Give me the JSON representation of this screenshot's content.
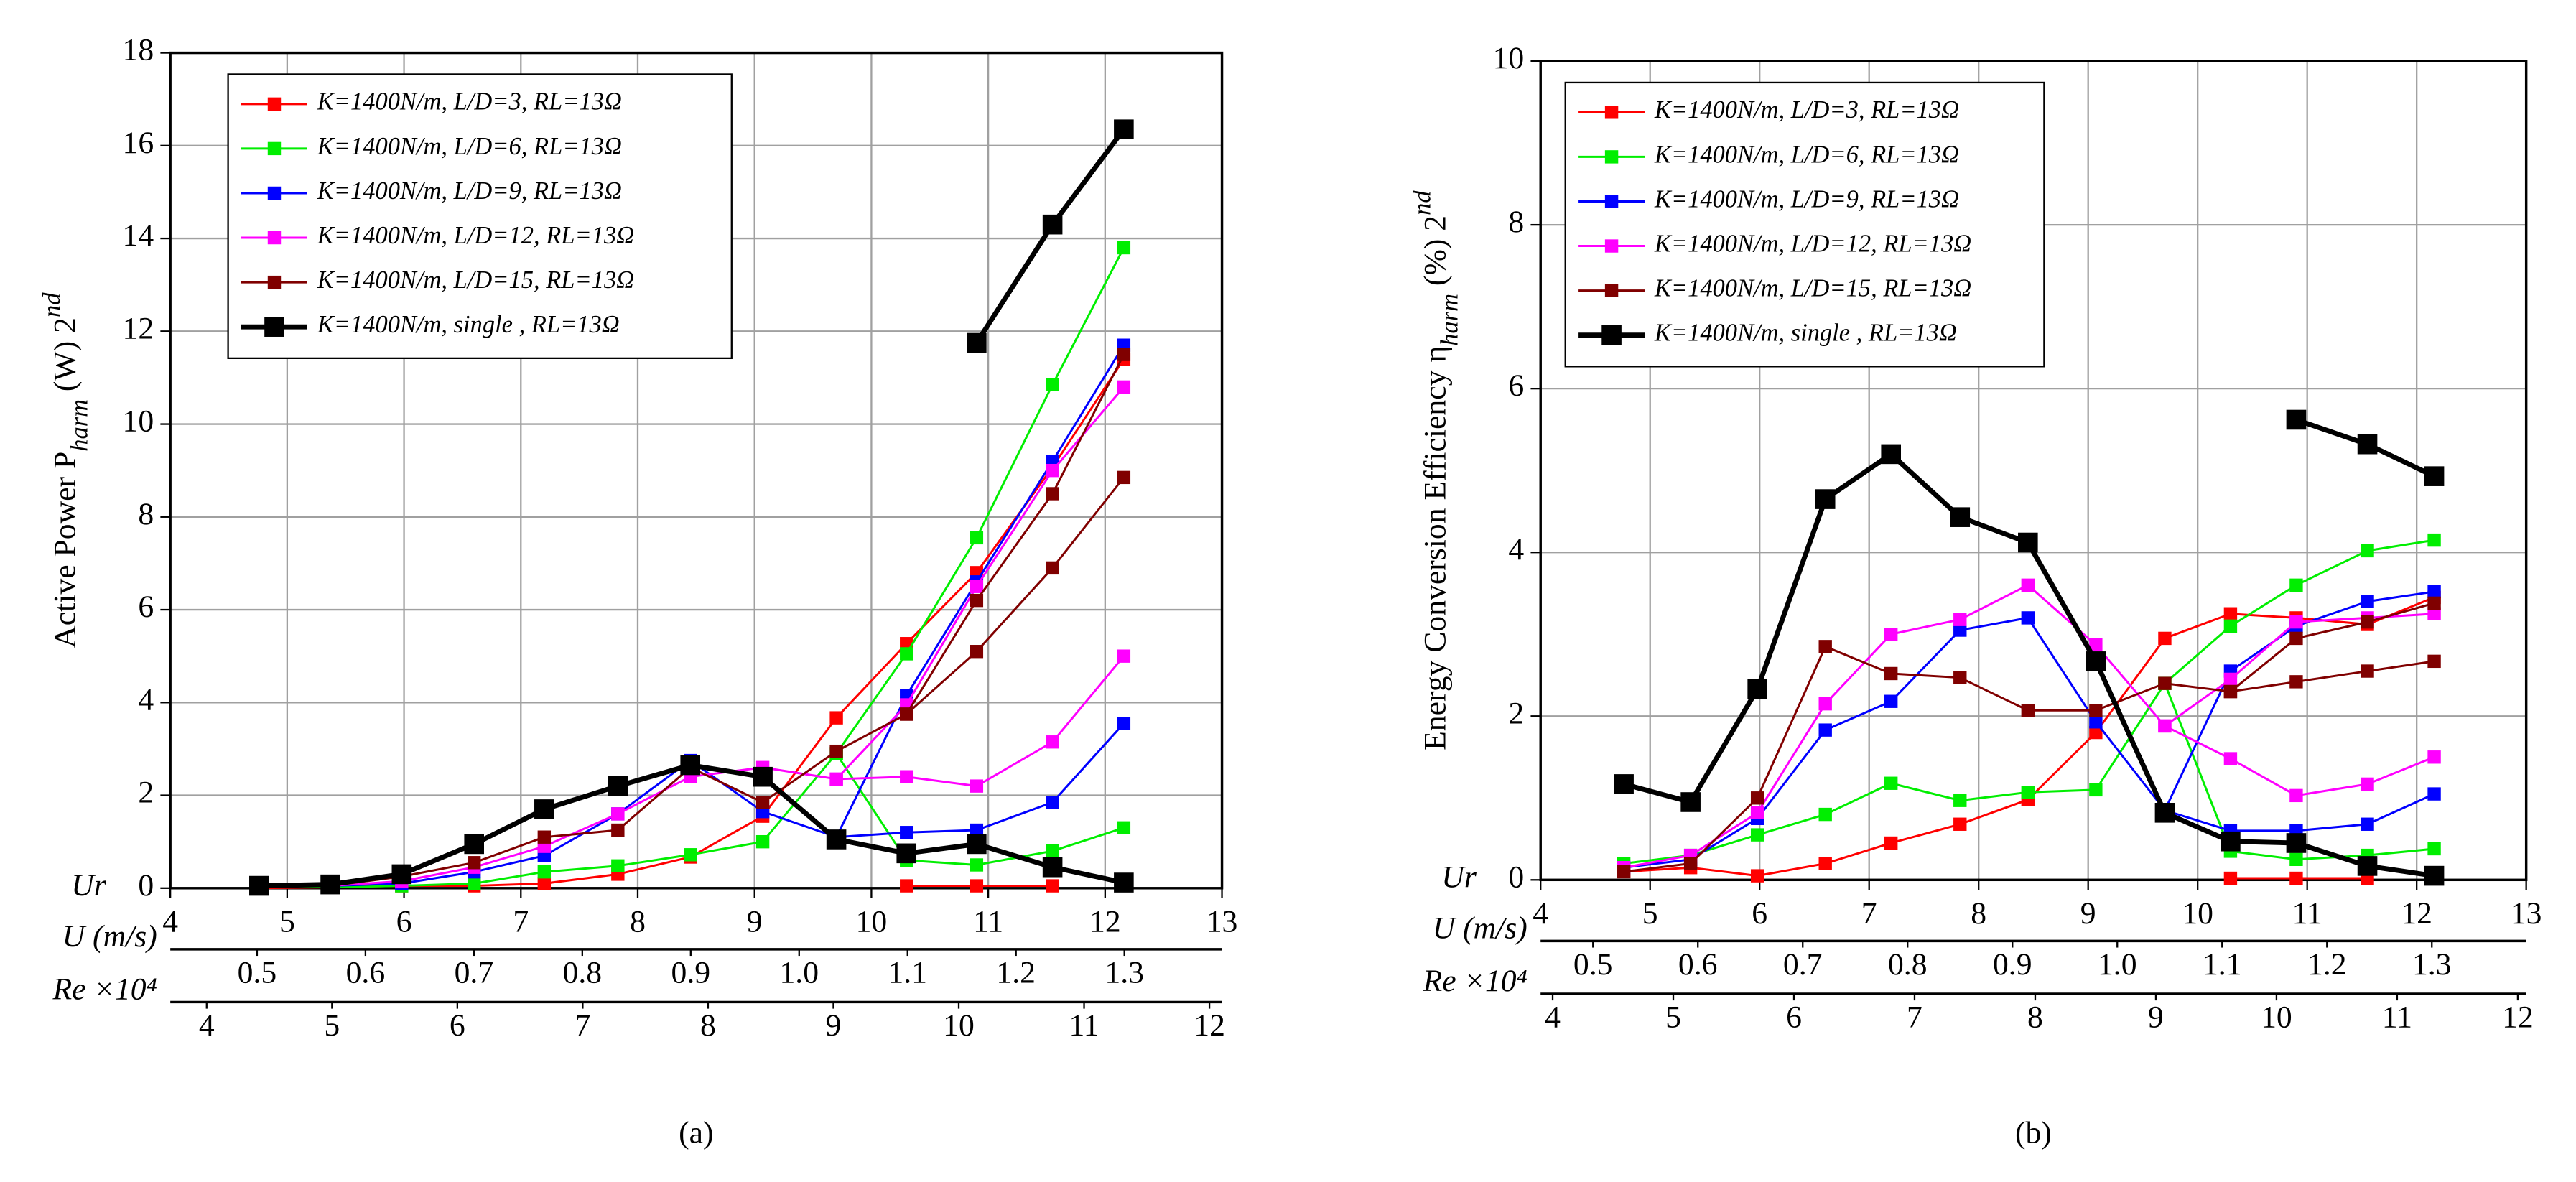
{
  "chart_data": [
    {
      "type": "line",
      "label": "(a)",
      "xlabel": "Ur",
      "ylabel": {
        "text": "Active Power P",
        "sub": "harm",
        "text2": " (W) 2",
        "sup": "nd"
      },
      "x": [
        4.76,
        5.37,
        5.98,
        6.6,
        7.2,
        7.83,
        8.45,
        9.07,
        9.7,
        10.3,
        10.9,
        11.55,
        12.16
      ],
      "xlim": [
        4,
        13
      ],
      "xticks": [
        4,
        5,
        6,
        7,
        8,
        9,
        10,
        11,
        12,
        13
      ],
      "ylim": [
        0,
        18
      ],
      "yticks": [
        0,
        2,
        4,
        6,
        8,
        10,
        12,
        14,
        16,
        18
      ],
      "grid": true,
      "legend": "upper-left",
      "axes2": [
        {
          "label": "U (m/s)",
          "lim": [
            0.42,
            1.39
          ],
          "ticks": [
            0.5,
            0.6,
            0.7,
            0.8,
            0.9,
            {
              "value": 1,
              "label": "1.0"
            },
            1.1,
            1.2,
            1.3
          ]
        },
        {
          "label": "Re ×10⁴",
          "lim": [
            3.71,
            12.1
          ],
          "ticks": [
            4,
            5,
            6,
            7,
            8,
            9,
            10,
            11,
            12
          ]
        }
      ],
      "series": [
        {
          "name": "K=1400N/m, L/D=3,   RL=13Ω",
          "color": "#ff0000",
          "values": [
            0,
            0.02,
            0.05,
            0.05,
            0.1,
            0.3,
            0.67,
            1.55,
            3.67,
            5.27,
            6.8,
            9.07,
            11.4
          ]
        },
        {
          "color": "#ff0000",
          "values": [
            null,
            null,
            null,
            null,
            null,
            null,
            null,
            null,
            null,
            0.05,
            0.05,
            0.05,
            null
          ]
        },
        {
          "name": "K=1400N/m, L/D=6,   RL=13Ω",
          "color": "#00ee00",
          "values": [
            0.02,
            0.02,
            0.05,
            0.1,
            0.35,
            0.48,
            0.72,
            1.0,
            2.9,
            5.05,
            7.55,
            10.85,
            13.8
          ]
        },
        {
          "color": "#00ee00",
          "values": [
            null,
            null,
            null,
            null,
            null,
            null,
            null,
            null,
            2.9,
            0.6,
            0.5,
            0.8,
            1.3
          ]
        },
        {
          "name": "K=1400N/m, L/D=9,   RL=13Ω",
          "color": "#0000ff",
          "values": [
            0.05,
            0.05,
            0.1,
            0.35,
            0.7,
            1.6,
            2.75,
            1.65,
            1.1,
            4.15,
            6.6,
            9.2,
            11.7
          ]
        },
        {
          "color": "#0000ff",
          "values": [
            null,
            null,
            null,
            null,
            null,
            null,
            null,
            null,
            1.1,
            1.2,
            1.25,
            1.85,
            3.55
          ]
        },
        {
          "name": "K=1400N/m, L/D=12, RL=13Ω",
          "color": "#ff00ff",
          "values": [
            0.03,
            0.05,
            0.15,
            0.45,
            0.9,
            1.6,
            2.4,
            2.6,
            2.35,
            2.4,
            2.2,
            3.15,
            5.0
          ]
        },
        {
          "color": "#ff00ff",
          "values": [
            null,
            null,
            null,
            null,
            null,
            null,
            null,
            null,
            2.35,
            3.95,
            6.5,
            9.0,
            10.8
          ]
        },
        {
          "name": "K=1400N/m, L/D=15, RL=13Ω",
          "color": "#800000",
          "values": [
            0.03,
            0.05,
            0.25,
            0.55,
            1.1,
            1.25,
            2.6,
            1.85,
            2.95,
            3.75,
            5.1,
            6.9,
            8.85
          ]
        },
        {
          "color": "#800000",
          "values": [
            null,
            null,
            null,
            null,
            null,
            null,
            null,
            null,
            null,
            3.75,
            6.2,
            8.5,
            11.5
          ]
        },
        {
          "name": "K=1400N/m, single ,   RL=13Ω",
          "color": "#000000",
          "values": [
            0.05,
            0.08,
            0.3,
            0.95,
            1.7,
            2.2,
            2.65,
            2.4,
            1.05,
            0.75,
            0.95,
            0.45,
            0.12
          ]
        },
        {
          "color": "#000000",
          "values": [
            null,
            null,
            null,
            null,
            null,
            null,
            null,
            null,
            null,
            null,
            11.75,
            14.3,
            16.35
          ]
        }
      ]
    },
    {
      "type": "line",
      "label": "(b)",
      "xlabel": "Ur",
      "ylabel": {
        "text": "Energy Conversion Efficiency η",
        "sub": "harm",
        "text2": " (%) 2",
        "sup": "nd"
      },
      "x": [
        4.76,
        5.37,
        5.98,
        6.6,
        7.2,
        7.83,
        8.45,
        9.07,
        9.7,
        10.3,
        10.9,
        11.55,
        12.16
      ],
      "xlim": [
        4,
        13
      ],
      "xticks": [
        4,
        5,
        6,
        7,
        8,
        9,
        10,
        11,
        12,
        13
      ],
      "ylim": [
        0,
        10
      ],
      "yticks": [
        0,
        2,
        4,
        6,
        8,
        10
      ],
      "grid": true,
      "legend": "upper-left",
      "axes2": [
        {
          "label": "U (m/s)",
          "lim": [
            0.45,
            1.39
          ],
          "ticks": [
            0.5,
            0.6,
            0.7,
            0.8,
            0.9,
            {
              "value": 1,
              "label": "1.0"
            },
            1.1,
            1.2,
            1.3
          ]
        },
        {
          "label": "Re ×10⁴",
          "lim": [
            3.9,
            12.07
          ],
          "ticks": [
            4,
            5,
            6,
            7,
            8,
            9,
            10,
            11,
            12
          ]
        }
      ],
      "series": [
        {
          "name": "K=1400N/m, L/D=3,   RL=13Ω",
          "color": "#ff0000",
          "values": [
            0.1,
            0.15,
            0.05,
            0.2,
            0.45,
            0.68,
            0.98,
            1.8,
            2.95,
            3.25,
            3.2,
            3.12,
            3.45
          ]
        },
        {
          "color": "#ff0000",
          "values": [
            null,
            null,
            null,
            null,
            null,
            null,
            null,
            null,
            null,
            0.02,
            0.02,
            0.02,
            null
          ]
        },
        {
          "name": "K=1400N/m, L/D=6,   RL=13Ω",
          "color": "#00ee00",
          "values": [
            0.2,
            0.3,
            0.55,
            0.8,
            1.18,
            0.97,
            1.07,
            1.1,
            2.4,
            3.1,
            3.6,
            4.02,
            4.15
          ]
        },
        {
          "color": "#00ee00",
          "values": [
            null,
            null,
            null,
            null,
            null,
            null,
            null,
            null,
            2.4,
            0.35,
            0.25,
            0.3,
            0.38
          ]
        },
        {
          "name": "K=1400N/m, L/D=9,   RL=13Ω",
          "color": "#0000ff",
          "values": [
            0.15,
            0.25,
            0.75,
            1.83,
            2.18,
            3.05,
            3.2,
            1.93,
            0.85,
            2.55,
            3.1,
            3.4,
            3.52
          ]
        },
        {
          "color": "#0000ff",
          "values": [
            null,
            null,
            null,
            null,
            null,
            null,
            null,
            null,
            0.85,
            0.6,
            0.6,
            0.68,
            1.05
          ]
        },
        {
          "name": "K=1400N/m, L/D=12, RL=13Ω",
          "color": "#ff00ff",
          "values": [
            0.15,
            0.3,
            0.82,
            2.15,
            3.0,
            3.18,
            3.6,
            2.87,
            1.88,
            1.48,
            1.03,
            1.17,
            1.5
          ]
        },
        {
          "color": "#ff00ff",
          "values": [
            null,
            null,
            null,
            null,
            null,
            null,
            null,
            null,
            1.88,
            2.45,
            3.15,
            3.2,
            3.25
          ]
        },
        {
          "name": "K=1400N/m, L/D=15, RL=13Ω",
          "color": "#800000",
          "values": [
            0.1,
            0.2,
            1.0,
            2.85,
            2.52,
            2.47,
            2.07,
            2.07,
            2.4,
            2.3,
            2.42,
            2.55,
            2.67
          ]
        },
        {
          "color": "#800000",
          "values": [
            null,
            null,
            null,
            null,
            null,
            null,
            null,
            null,
            null,
            2.3,
            2.95,
            3.15,
            3.38
          ]
        },
        {
          "name": "K=1400N/m, single ,   RL=13Ω",
          "color": "#000000",
          "values": [
            1.17,
            0.95,
            2.33,
            4.65,
            5.2,
            4.43,
            4.12,
            2.67,
            0.82,
            0.47,
            0.45,
            0.17,
            0.05
          ]
        },
        {
          "color": "#000000",
          "values": [
            null,
            null,
            null,
            null,
            null,
            null,
            null,
            null,
            null,
            null,
            5.62,
            5.32,
            4.93
          ]
        }
      ]
    }
  ]
}
